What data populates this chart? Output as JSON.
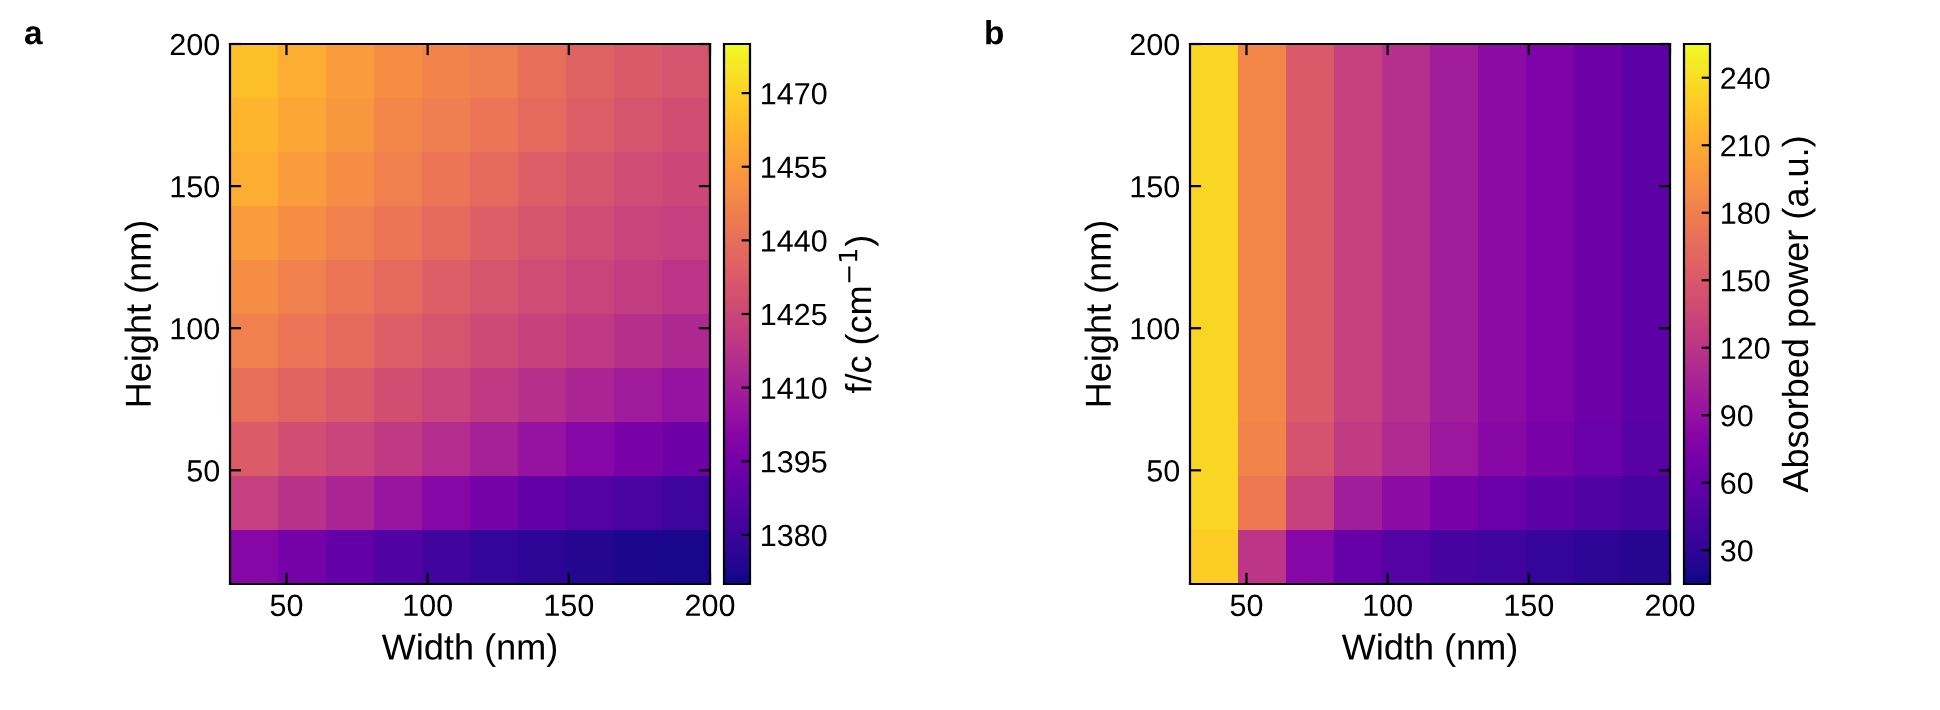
{
  "chart_data": [
    {
      "type": "heatmap",
      "title": "a",
      "xlabel": "Width (nm)",
      "ylabel": "Height (nm)",
      "clabel": "f/c (cm$^{−1}$)",
      "xlim": [
        30,
        200
      ],
      "xticks": [
        50,
        100,
        150,
        200
      ],
      "ylim": [
        10,
        200
      ],
      "yticks": [
        50,
        100,
        150,
        200
      ],
      "clim": [
        1370,
        1480
      ],
      "cticks": [
        1380,
        1395,
        1410,
        1425,
        1440,
        1455,
        1470
      ],
      "cells": [
        [
          1465,
          1460,
          1455,
          1450,
          1447,
          1445,
          1440,
          1435,
          1432,
          1430
        ],
        [
          1462,
          1458,
          1453,
          1448,
          1445,
          1442,
          1438,
          1434,
          1430,
          1428
        ],
        [
          1460,
          1455,
          1450,
          1446,
          1442,
          1438,
          1434,
          1430,
          1427,
          1425
        ],
        [
          1455,
          1450,
          1446,
          1442,
          1438,
          1434,
          1430,
          1427,
          1424,
          1422
        ],
        [
          1450,
          1446,
          1442,
          1438,
          1434,
          1430,
          1427,
          1424,
          1421,
          1418
        ],
        [
          1446,
          1442,
          1438,
          1434,
          1430,
          1426,
          1423,
          1420,
          1416,
          1413
        ],
        [
          1440,
          1436,
          1432,
          1428,
          1424,
          1420,
          1416,
          1412,
          1408,
          1405
        ],
        [
          1433,
          1428,
          1424,
          1420,
          1415,
          1410,
          1405,
          1400,
          1396,
          1393
        ],
        [
          1422,
          1417,
          1412,
          1406,
          1400,
          1395,
          1390,
          1386,
          1383,
          1380
        ],
        [
          1400,
          1395,
          1390,
          1385,
          1381,
          1378,
          1376,
          1374,
          1373,
          1372
        ]
      ]
    },
    {
      "type": "heatmap",
      "title": "b",
      "xlabel": "Width (nm)",
      "ylabel": "Height (nm)",
      "clabel": "Absorbed power (a.u.)",
      "xlim": [
        30,
        200
      ],
      "xticks": [
        50,
        100,
        150,
        200
      ],
      "ylim": [
        10,
        200
      ],
      "yticks": [
        50,
        100,
        150,
        200
      ],
      "clim": [
        15,
        255
      ],
      "cticks": [
        30,
        60,
        90,
        120,
        150,
        180,
        210,
        240
      ],
      "cells": [
        [
          235,
          185,
          150,
          130,
          115,
          100,
          85,
          75,
          65,
          55
        ],
        [
          235,
          185,
          150,
          130,
          115,
          100,
          85,
          75,
          65,
          55
        ],
        [
          235,
          185,
          150,
          130,
          115,
          100,
          85,
          75,
          65,
          55
        ],
        [
          235,
          185,
          150,
          130,
          115,
          100,
          85,
          75,
          65,
          55
        ],
        [
          235,
          185,
          150,
          130,
          115,
          100,
          85,
          75,
          65,
          55
        ],
        [
          235,
          185,
          150,
          130,
          115,
          100,
          85,
          75,
          65,
          55
        ],
        [
          235,
          185,
          150,
          130,
          115,
          100,
          85,
          75,
          65,
          55
        ],
        [
          235,
          183,
          145,
          125,
          110,
          95,
          82,
          72,
          62,
          52
        ],
        [
          235,
          175,
          130,
          100,
          85,
          72,
          62,
          55,
          48,
          42
        ],
        [
          230,
          120,
          80,
          60,
          50,
          42,
          37,
          32,
          28,
          25
        ]
      ]
    }
  ]
}
